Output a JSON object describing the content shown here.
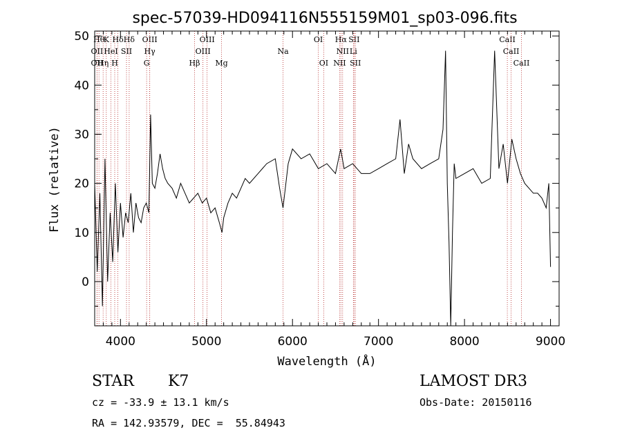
{
  "chart_data": {
    "type": "line",
    "title": "spec-57039-HD094116N555159M01_sp03-096.fits",
    "xlabel": "Wavelength (Å)",
    "ylabel": "Flux (relative)",
    "xlim": [
      3700,
      9100
    ],
    "ylim": [
      -9,
      51
    ],
    "x_ticks": [
      4000,
      5000,
      6000,
      7000,
      8000,
      9000
    ],
    "y_ticks": [
      0,
      10,
      20,
      30,
      40,
      50
    ],
    "series": [
      {
        "name": "spectrum",
        "x": [
          3700,
          3730,
          3760,
          3790,
          3820,
          3850,
          3880,
          3910,
          3940,
          3970,
          4000,
          4030,
          4060,
          4090,
          4120,
          4150,
          4180,
          4210,
          4240,
          4270,
          4300,
          4330,
          4350,
          4370,
          4400,
          4430,
          4460,
          4490,
          4520,
          4550,
          4600,
          4650,
          4700,
          4750,
          4800,
          4850,
          4900,
          4950,
          5000,
          5050,
          5100,
          5150,
          5180,
          5200,
          5250,
          5300,
          5350,
          5400,
          5450,
          5500,
          5600,
          5700,
          5800,
          5850,
          5890,
          5950,
          6000,
          6100,
          6200,
          6300,
          6400,
          6500,
          6560,
          6600,
          6700,
          6800,
          6900,
          7000,
          7100,
          7200,
          7250,
          7300,
          7350,
          7400,
          7500,
          7600,
          7700,
          7750,
          7780,
          7800,
          7820,
          7840,
          7860,
          7880,
          7900,
          8000,
          8100,
          8200,
          8300,
          8350,
          8400,
          8450,
          8500,
          8550,
          8600,
          8650,
          8700,
          8750,
          8800,
          8850,
          8900,
          8950,
          8980,
          9000
        ],
        "y": [
          20,
          2,
          18,
          -5,
          25,
          0,
          14,
          4,
          20,
          6,
          16,
          9,
          14,
          12,
          18,
          10,
          16,
          13,
          12,
          15,
          16,
          14,
          34,
          20,
          19,
          22,
          26,
          23,
          21,
          20,
          19,
          17,
          20,
          18,
          16,
          17,
          18,
          16,
          17,
          14,
          15,
          12,
          10,
          13,
          16,
          18,
          17,
          19,
          21,
          20,
          22,
          24,
          25,
          19,
          15,
          24,
          27,
          25,
          26,
          23,
          24,
          22,
          27,
          23,
          24,
          22,
          22,
          23,
          24,
          25,
          33,
          22,
          28,
          25,
          23,
          24,
          25,
          31,
          47,
          20,
          8,
          -9,
          10,
          24,
          21,
          22,
          23,
          20,
          21,
          47,
          23,
          28,
          20,
          29,
          25,
          22,
          20,
          19,
          18,
          18,
          17,
          15,
          20,
          3
        ]
      }
    ],
    "line_markers": [
      {
        "x": 3750,
        "label": "Hθ",
        "row": 0
      },
      {
        "x": 3835,
        "label": "K",
        "row": 0
      },
      {
        "x": 3970,
        "label": "Hδ",
        "row": 0
      },
      {
        "x": 4101,
        "label": "Hδ",
        "row": 0
      },
      {
        "x": 4340,
        "label": "OIII",
        "row": 0
      },
      {
        "x": 5007,
        "label": "OIII",
        "row": 0
      },
      {
        "x": 6300,
        "label": "OI",
        "row": 0
      },
      {
        "x": 6563,
        "label": "Hα",
        "row": 0
      },
      {
        "x": 6716,
        "label": "SII",
        "row": 0
      },
      {
        "x": 8498,
        "label": "CaII",
        "row": 0
      },
      {
        "x": 3727,
        "label": "OII",
        "row": 1
      },
      {
        "x": 3889,
        "label": "HeI",
        "row": 1
      },
      {
        "x": 4070,
        "label": "SII",
        "row": 1
      },
      {
        "x": 4340,
        "label": "Hγ",
        "row": 1
      },
      {
        "x": 4959,
        "label": "OIII",
        "row": 1
      },
      {
        "x": 5890,
        "label": "Na",
        "row": 1
      },
      {
        "x": 6583,
        "label": "NII",
        "row": 1
      },
      {
        "x": 6708,
        "label": "Li",
        "row": 1
      },
      {
        "x": 8542,
        "label": "CaII",
        "row": 1
      },
      {
        "x": 3727,
        "label": "OII",
        "row": 2
      },
      {
        "x": 3798,
        "label": "Hη",
        "row": 2
      },
      {
        "x": 3933,
        "label": "H",
        "row": 2
      },
      {
        "x": 4304,
        "label": "G",
        "row": 2
      },
      {
        "x": 4861,
        "label": "Hβ",
        "row": 2
      },
      {
        "x": 5175,
        "label": "Mg",
        "row": 2
      },
      {
        "x": 6363,
        "label": "OI",
        "row": 2
      },
      {
        "x": 6548,
        "label": "NII",
        "row": 2
      },
      {
        "x": 6731,
        "label": "SII",
        "row": 2
      },
      {
        "x": 8662,
        "label": "CaII",
        "row": 2
      }
    ]
  },
  "info": {
    "class": "STAR",
    "subclass": "K7",
    "survey": "LAMOST DR3",
    "cz": "cz = -33.9 ± 13.1 km/s",
    "obsdate": "Obs-Date: 20150116",
    "coords": "RA = 142.93579, DEC =  55.84943"
  }
}
